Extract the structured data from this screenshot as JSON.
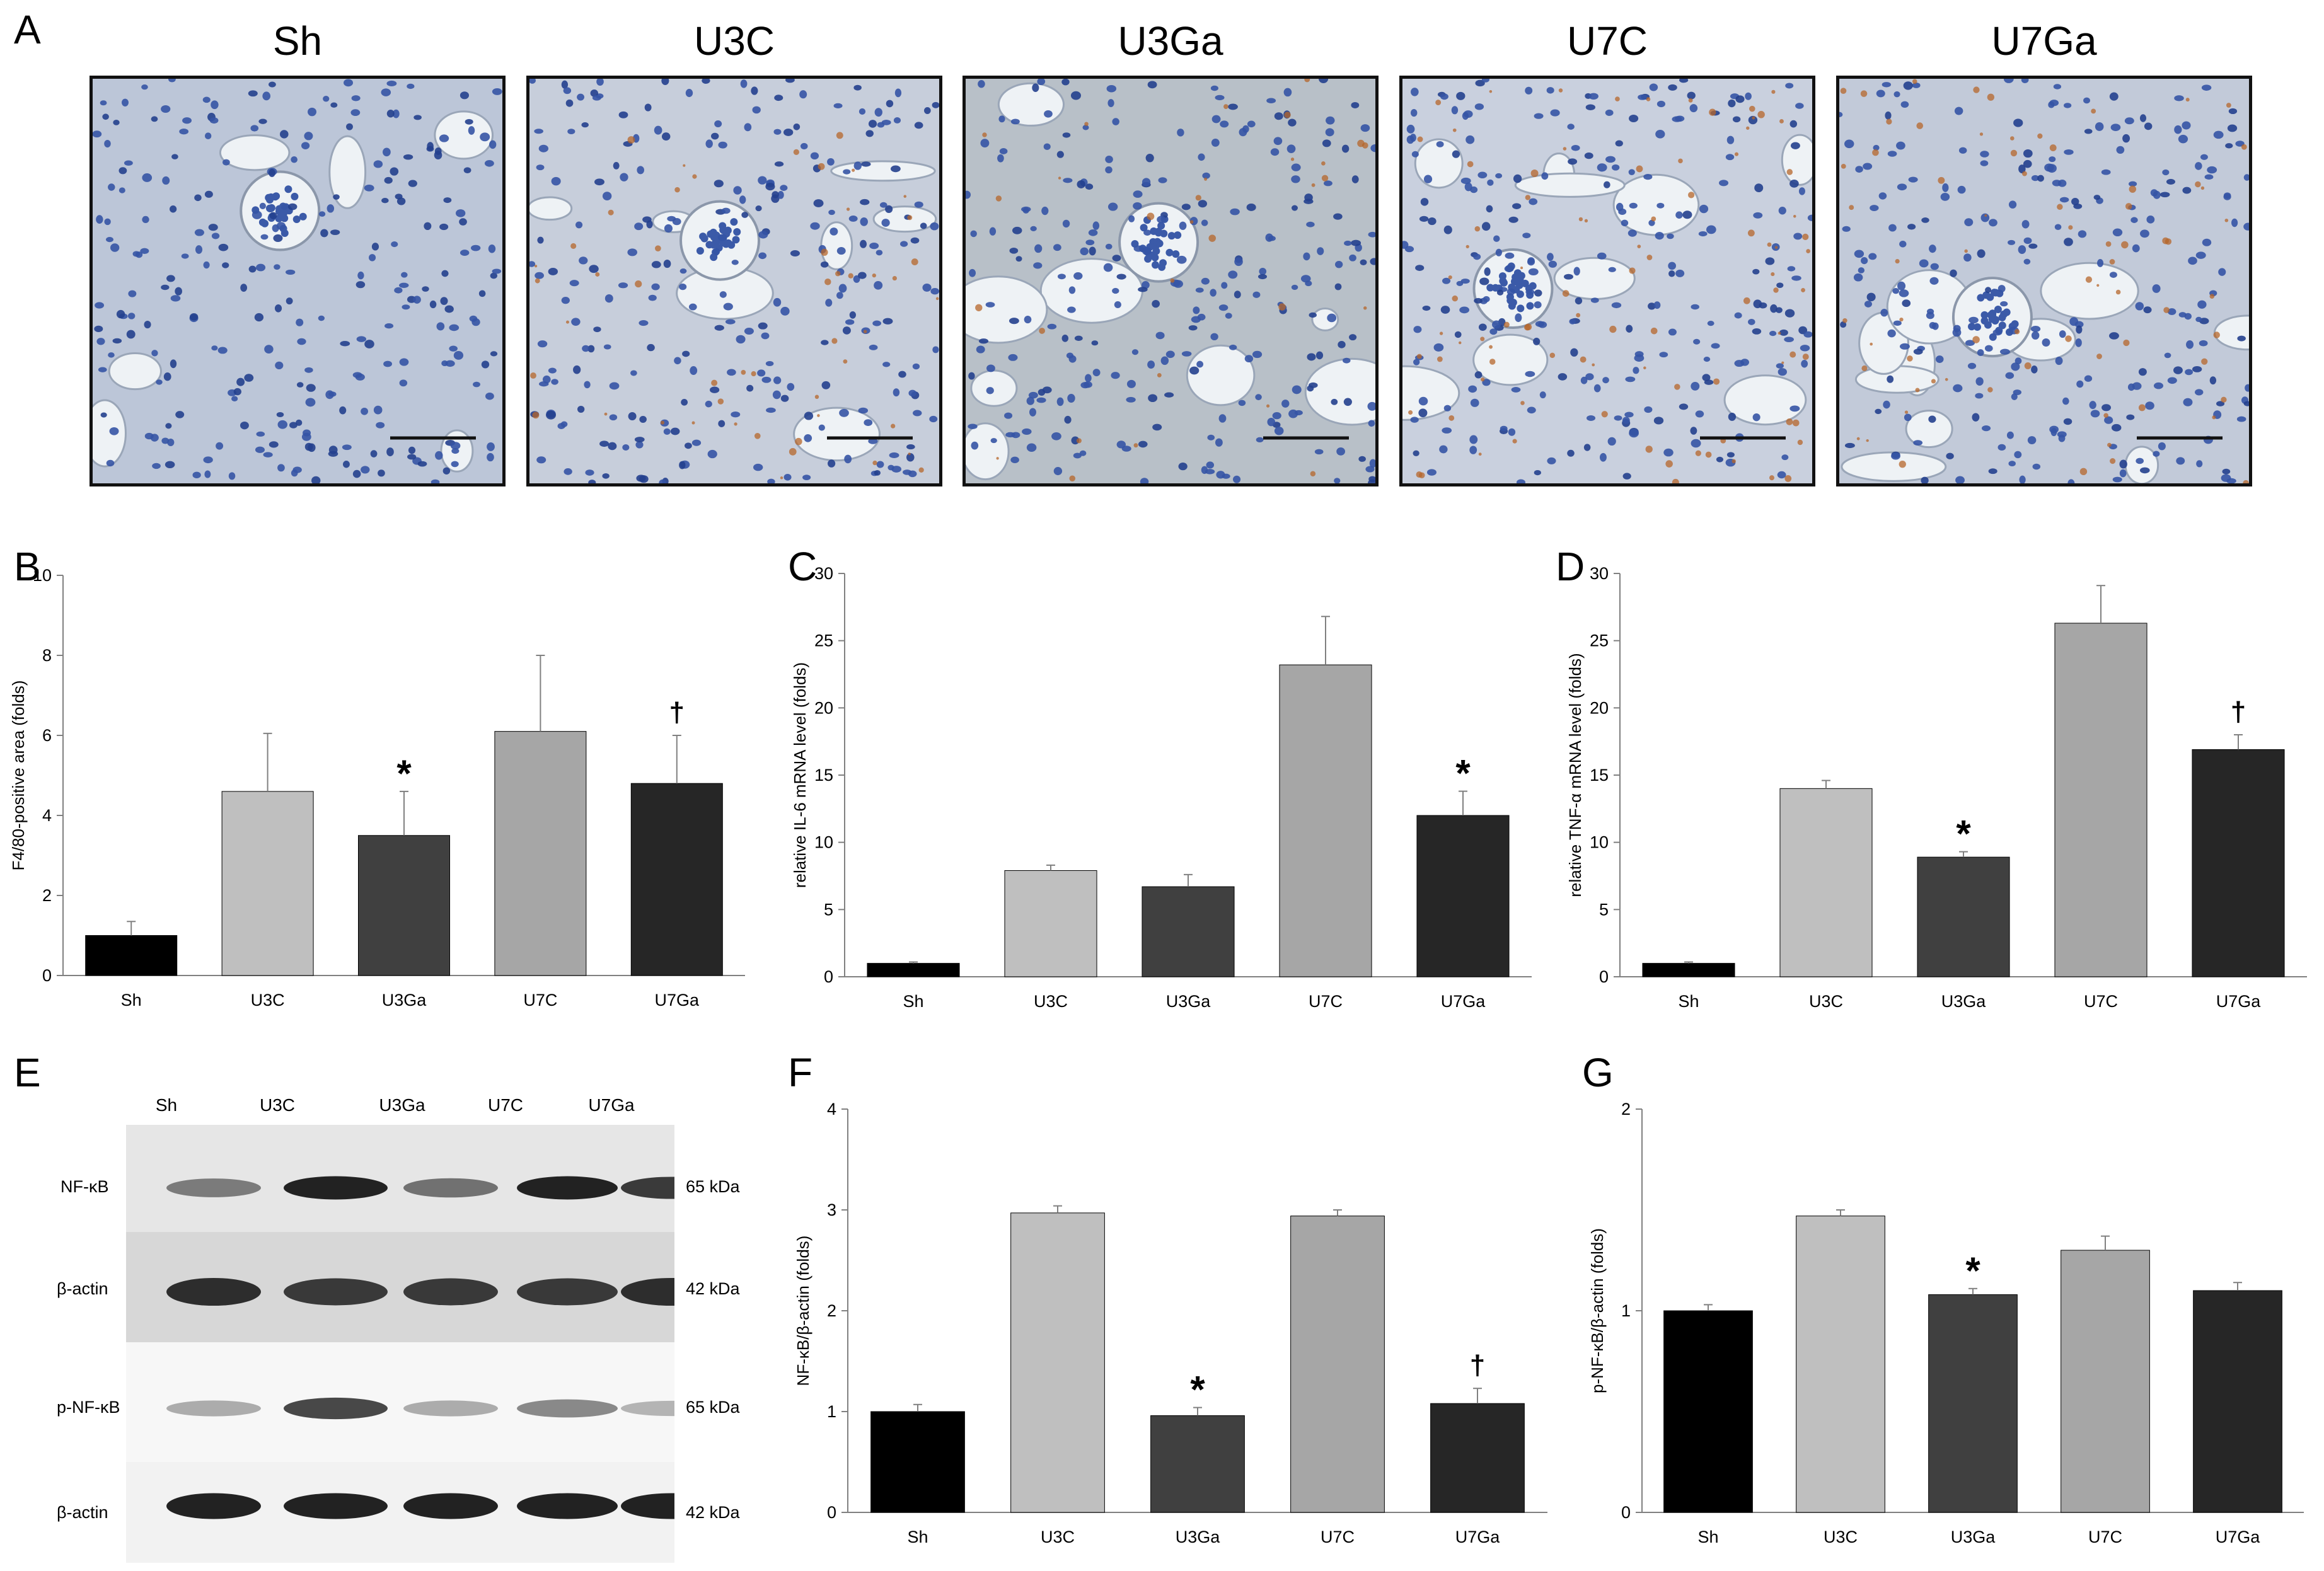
{
  "panel_letters": [
    "A",
    "B",
    "C",
    "D",
    "E",
    "F",
    "G"
  ],
  "micrographs": {
    "titles": [
      "Sh",
      "U3C",
      "U3Ga",
      "U7C",
      "U7Ga"
    ],
    "bg_colors": [
      "#bcc6d8",
      "#c7cedb",
      "#b8c0c8",
      "#c9d0de",
      "#c2cad9"
    ],
    "stain_amounts": [
      0,
      0.25,
      0.15,
      0.45,
      0.35
    ]
  },
  "western_blot": {
    "lanes": [
      "Sh",
      "U3C",
      "U3Ga",
      "U7C",
      "U7Ga"
    ],
    "rows": [
      {
        "label": "NF-κB",
        "size": "65 kDa",
        "intensities": [
          0.55,
          0.95,
          0.6,
          0.95,
          0.85
        ]
      },
      {
        "label": "β-actin",
        "size": "42 kDa",
        "intensities": [
          0.9,
          0.85,
          0.85,
          0.85,
          0.9
        ]
      },
      {
        "label": "p-NF-κB",
        "size": "65 kDa",
        "intensities": [
          0.3,
          0.8,
          0.3,
          0.5,
          0.25
        ]
      },
      {
        "label": "β-actin",
        "size": "42 kDa",
        "intensities": [
          0.95,
          0.95,
          0.95,
          0.95,
          0.95
        ]
      }
    ]
  },
  "chart_data": [
    {
      "panel": "B",
      "type": "bar",
      "categories": [
        "Sh",
        "U3C",
        "U3Ga",
        "U7C",
        "U7Ga"
      ],
      "values": [
        1.0,
        4.6,
        3.5,
        6.1,
        4.8
      ],
      "errors": [
        0.35,
        1.45,
        1.1,
        1.9,
        1.2
      ],
      "markers": [
        "",
        "",
        "*",
        "",
        "†"
      ],
      "colors": [
        "#000000",
        "#bfbfbf",
        "#404040",
        "#a6a6a6",
        "#262626"
      ],
      "ylabel": "F4/80-positive area (folds)",
      "ylim": [
        0,
        10
      ],
      "yticks": [
        0,
        2,
        4,
        6,
        8,
        10
      ]
    },
    {
      "panel": "C",
      "type": "bar",
      "categories": [
        "Sh",
        "U3C",
        "U3Ga",
        "U7C",
        "U7Ga"
      ],
      "values": [
        1.0,
        7.9,
        6.7,
        23.2,
        12.0
      ],
      "errors": [
        0.1,
        0.4,
        0.9,
        3.6,
        1.8
      ],
      "markers": [
        "",
        "",
        "",
        "",
        "*"
      ],
      "colors": [
        "#000000",
        "#bfbfbf",
        "#404040",
        "#a6a6a6",
        "#262626"
      ],
      "ylabel": "relative IL-6 mRNA level (folds)",
      "ylim": [
        0,
        30
      ],
      "yticks": [
        0,
        5,
        10,
        15,
        20,
        25,
        30
      ]
    },
    {
      "panel": "D",
      "type": "bar",
      "categories": [
        "Sh",
        "U3C",
        "U3Ga",
        "U7C",
        "U7Ga"
      ],
      "values": [
        1.0,
        14.0,
        8.9,
        26.3,
        16.9
      ],
      "errors": [
        0.1,
        0.6,
        0.4,
        2.8,
        1.1
      ],
      "markers": [
        "",
        "",
        "*",
        "",
        "†"
      ],
      "colors": [
        "#000000",
        "#bfbfbf",
        "#404040",
        "#a6a6a6",
        "#262626"
      ],
      "ylabel": "relative TNF-α mRNA level (folds)",
      "ylim": [
        0,
        30
      ],
      "yticks": [
        0,
        5,
        10,
        15,
        20,
        25,
        30
      ]
    },
    {
      "panel": "F",
      "type": "bar",
      "categories": [
        "Sh",
        "U3C",
        "U3Ga",
        "U7C",
        "U7Ga"
      ],
      "values": [
        1.0,
        2.97,
        0.96,
        2.94,
        1.08
      ],
      "errors": [
        0.07,
        0.07,
        0.08,
        0.06,
        0.15
      ],
      "markers": [
        "",
        "",
        "*",
        "",
        "†"
      ],
      "colors": [
        "#000000",
        "#bfbfbf",
        "#404040",
        "#a6a6a6",
        "#262626"
      ],
      "ylabel": "NF-κB/β-actin (folds)",
      "ylim": [
        0,
        4
      ],
      "yticks": [
        0,
        1,
        2,
        3,
        4
      ]
    },
    {
      "panel": "G",
      "type": "bar",
      "categories": [
        "Sh",
        "U3C",
        "U3Ga",
        "U7C",
        "U7Ga"
      ],
      "values": [
        1.0,
        1.47,
        1.08,
        1.3,
        1.1
      ],
      "errors": [
        0.03,
        0.03,
        0.03,
        0.07,
        0.04
      ],
      "markers": [
        "",
        "",
        "*",
        "",
        ""
      ],
      "colors": [
        "#000000",
        "#bfbfbf",
        "#404040",
        "#a6a6a6",
        "#262626"
      ],
      "ylabel": "p-NF-κB/β-actin (folds)",
      "ylim": [
        0,
        2
      ],
      "yticks": [
        0,
        1,
        2
      ]
    }
  ]
}
